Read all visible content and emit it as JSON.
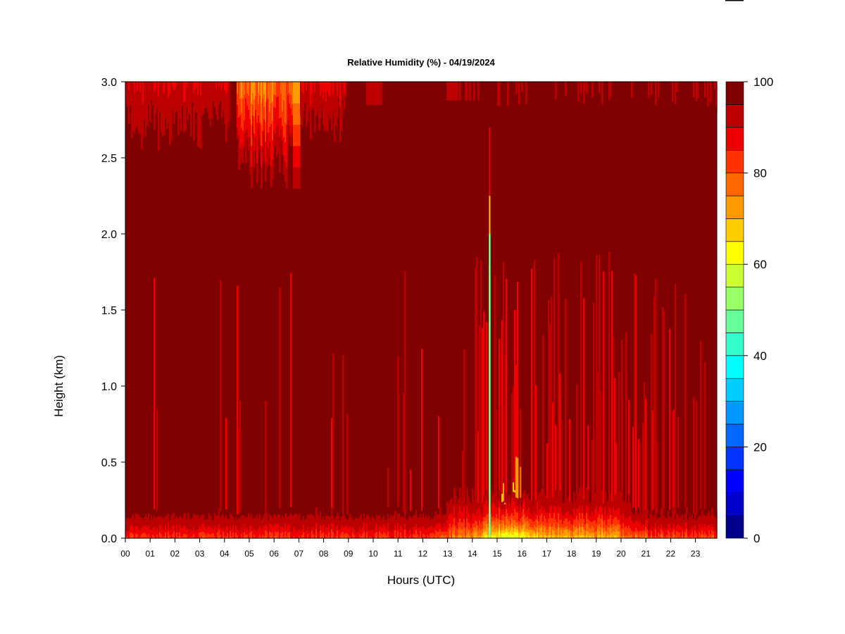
{
  "chart_data": {
    "type": "heatmap",
    "title": "Relative Humidity (%) - 04/19/2024",
    "xlabel": "Hours (UTC)",
    "ylabel": "Height (km)",
    "x_ticks": [
      "00",
      "01",
      "02",
      "03",
      "04",
      "05",
      "06",
      "07",
      "08",
      "09",
      "10",
      "11",
      "12",
      "13",
      "14",
      "15",
      "16",
      "17",
      "18",
      "19",
      "20",
      "21",
      "22",
      "23"
    ],
    "xlim": [
      0,
      24
    ],
    "ylim": [
      0.0,
      3.0
    ],
    "y_ticks": [
      "0.0",
      "0.5",
      "1.0",
      "1.5",
      "2.0",
      "2.5",
      "3.0"
    ],
    "colorbar": {
      "range": [
        0,
        100
      ],
      "ticks": [
        "0",
        "20",
        "40",
        "60",
        "80",
        "100"
      ],
      "levels_colors": [
        "#00008b",
        "#0000cd",
        "#0000ff",
        "#0033ff",
        "#0066ff",
        "#0099ff",
        "#00ccff",
        "#00ffff",
        "#33ffcc",
        "#66ff99",
        "#99ff66",
        "#ccff33",
        "#ffff00",
        "#ffcc00",
        "#ff9900",
        "#ff6600",
        "#ff3300",
        "#ee0000",
        "#bb0000",
        "#800000"
      ]
    },
    "field_summary": {
      "background_rh": 100,
      "surface_layer_rh_range": [
        55,
        90
      ],
      "drier_aloft_hours": [
        4.5,
        7.1
      ],
      "drier_aloft_min_height_km": 2.3,
      "dry_spike_hour": 14.7,
      "dry_spike_top_km": 2.0,
      "afternoon_surface_drying_hours": [
        14.5,
        17.0
      ]
    }
  }
}
